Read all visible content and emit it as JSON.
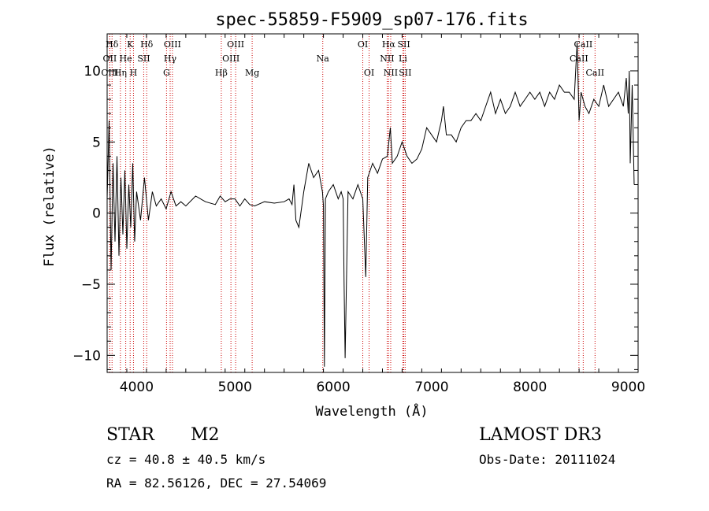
{
  "chart_data": {
    "type": "line",
    "title": "spec-55859-F5909_sp07-176.fits",
    "xlabel": "Wavelength (Å)",
    "ylabel": "Flux (relative)",
    "xlim": [
      3700,
      9100
    ],
    "ylim": [
      -11.2,
      12.6
    ],
    "xticks": [
      4000,
      5000,
      6000,
      7000,
      8000,
      9000
    ],
    "yticks": [
      -10,
      -5,
      0,
      5,
      10
    ],
    "grid": false,
    "series": [
      {
        "name": "flux",
        "x": [
          3700,
          3720,
          3740,
          3760,
          3780,
          3800,
          3820,
          3840,
          3860,
          3880,
          3900,
          3920,
          3940,
          3960,
          3980,
          4000,
          4040,
          4080,
          4120,
          4160,
          4200,
          4250,
          4300,
          4350,
          4400,
          4450,
          4500,
          4600,
          4700,
          4800,
          4850,
          4900,
          4950,
          5000,
          5050,
          5100,
          5150,
          5200,
          5300,
          5400,
          5500,
          5550,
          5580,
          5600,
          5620,
          5650,
          5700,
          5750,
          5800,
          5850,
          5890,
          5900,
          5910,
          5920,
          5950,
          6000,
          6050,
          6080,
          6100,
          6110,
          6120,
          6150,
          6200,
          6250,
          6300,
          6330,
          6350,
          6400,
          6450,
          6500,
          6550,
          6580,
          6600,
          6650,
          6700,
          6750,
          6800,
          6850,
          6900,
          6950,
          7000,
          7050,
          7100,
          7120,
          7150,
          7200,
          7250,
          7300,
          7350,
          7400,
          7450,
          7500,
          7550,
          7600,
          7650,
          7700,
          7750,
          7800,
          7850,
          7900,
          7950,
          8000,
          8050,
          8100,
          8150,
          8200,
          8250,
          8300,
          8350,
          8400,
          8450,
          8480,
          8500,
          8520,
          8540,
          8560,
          8600,
          8650,
          8700,
          8750,
          8800,
          8850,
          8900,
          8950,
          8980,
          9000,
          9010,
          9020,
          9040,
          9060
        ],
        "y": [
          1.0,
          6.5,
          -4.0,
          3.5,
          -2.0,
          4.0,
          -3.0,
          2.5,
          -1.5,
          3.0,
          -2.5,
          2.0,
          -1.0,
          3.5,
          -2.0,
          1.5,
          -0.5,
          2.5,
          -0.5,
          1.5,
          0.5,
          1.0,
          0.3,
          1.5,
          0.5,
          0.8,
          0.5,
          1.2,
          0.8,
          0.6,
          1.2,
          0.8,
          1.0,
          1.0,
          0.5,
          1.0,
          0.6,
          0.5,
          0.8,
          0.7,
          0.8,
          1.0,
          0.6,
          2.0,
          -0.5,
          -1.0,
          1.5,
          3.5,
          2.5,
          3.0,
          1.5,
          0.5,
          -10.8,
          1.0,
          1.5,
          2.0,
          1.0,
          1.5,
          1.0,
          -5.0,
          -10.2,
          1.5,
          1.0,
          2.0,
          1.0,
          -4.5,
          2.5,
          3.5,
          2.8,
          3.8,
          4.0,
          6.0,
          3.5,
          4.0,
          5.0,
          4.0,
          3.5,
          3.8,
          4.5,
          6.0,
          5.5,
          5.0,
          6.5,
          7.5,
          5.5,
          5.5,
          5.0,
          6.0,
          6.5,
          6.5,
          7.0,
          6.5,
          7.5,
          8.5,
          7.0,
          8.0,
          7.0,
          7.5,
          8.5,
          7.5,
          8.0,
          8.5,
          8.0,
          8.5,
          7.5,
          8.5,
          8.0,
          9.0,
          8.5,
          8.5,
          8.0,
          12.0,
          6.5,
          8.5,
          8.0,
          7.5,
          7.0,
          8.0,
          7.5,
          9.0,
          7.5,
          8.0,
          8.5,
          7.5,
          9.5,
          7.0,
          10.0,
          3.5,
          9.0,
          2.0
        ]
      }
    ],
    "line_markers": [
      {
        "label": "Hδ",
        "wavelength": 3750,
        "row": 1
      },
      {
        "label": "K",
        "wavelength": 3934,
        "row": 1
      },
      {
        "label": "Hδ",
        "wavelength": 4102,
        "row": 1
      },
      {
        "label": "OIII",
        "wavelength": 4364,
        "row": 1
      },
      {
        "label": "OIII",
        "wavelength": 5007,
        "row": 1
      },
      {
        "label": "OI",
        "wavelength": 6300,
        "row": 1
      },
      {
        "label": "Hα",
        "wavelength": 6563,
        "row": 1
      },
      {
        "label": "SII",
        "wavelength": 6717,
        "row": 1
      },
      {
        "label": "CaII",
        "wavelength": 8542,
        "row": 1
      },
      {
        "label": "OII",
        "wavelength": 3727,
        "row": 2
      },
      {
        "label": "He",
        "wavelength": 3889,
        "row": 2
      },
      {
        "label": "SII",
        "wavelength": 4072,
        "row": 2
      },
      {
        "label": "Hγ",
        "wavelength": 4341,
        "row": 2
      },
      {
        "label": "OIII",
        "wavelength": 4959,
        "row": 2
      },
      {
        "label": "Na",
        "wavelength": 5893,
        "row": 2
      },
      {
        "label": "NII",
        "wavelength": 6548,
        "row": 2
      },
      {
        "label": "Li",
        "wavelength": 6708,
        "row": 2
      },
      {
        "label": "CaII",
        "wavelength": 8498,
        "row": 2
      },
      {
        "label": "OIII",
        "wavelength": 3727,
        "row": 3
      },
      {
        "label": "Hη",
        "wavelength": 3835,
        "row": 3
      },
      {
        "label": "H",
        "wavelength": 3968,
        "row": 3
      },
      {
        "label": "G",
        "wavelength": 4304,
        "row": 3
      },
      {
        "label": "Hβ",
        "wavelength": 4861,
        "row": 3
      },
      {
        "label": "Mg",
        "wavelength": 5175,
        "row": 3
      },
      {
        "label": "OI",
        "wavelength": 6364,
        "row": 3
      },
      {
        "label": "NII",
        "wavelength": 6584,
        "row": 3
      },
      {
        "label": "SII",
        "wavelength": 6731,
        "row": 3
      },
      {
        "label": "CaII",
        "wavelength": 8662,
        "row": 3
      }
    ]
  },
  "info": {
    "class_label": "STAR",
    "subclass": "M2",
    "survey": "LAMOST DR3",
    "cz": "cz = 40.8 ± 40.5 km/s",
    "obs_date": "Obs-Date: 20111024",
    "radec": "RA =  82.56126, DEC =  27.54069"
  },
  "colors": {
    "spectrum": "#000000",
    "marker_lines": "#cc0000",
    "axes": "#000000"
  }
}
